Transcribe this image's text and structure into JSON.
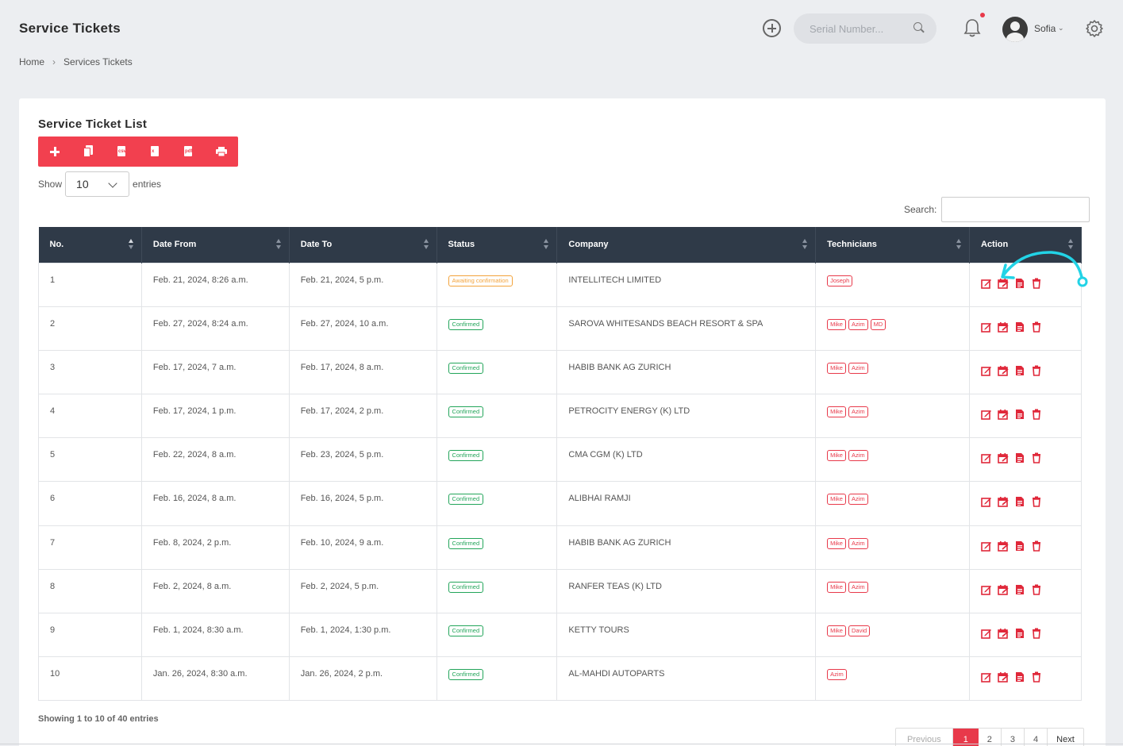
{
  "header": {
    "title": "Service Tickets",
    "serial_placeholder": "Serial Number...",
    "username": "Sofia"
  },
  "breadcrumb": [
    "Home",
    "Services Tickets"
  ],
  "card": {
    "title": "Service Ticket List",
    "show_label": "Show",
    "entries_value": "10",
    "entries_label": "entries",
    "search_label": "Search:"
  },
  "toolbar": [
    "plus-icon",
    "copy-icon",
    "csv-icon",
    "excel-icon",
    "pdf-icon",
    "print-icon"
  ],
  "table": {
    "columns": [
      "No.",
      "Date From",
      "Date To",
      "Status",
      "Company",
      "Technicians",
      "Action"
    ],
    "rows": [
      {
        "no": "1",
        "from": "Feb. 21, 2024, 8:26 a.m.",
        "to": "Feb. 21, 2024, 5 p.m.",
        "status": "Awaiting confirmation",
        "company": "INTELLITECH LIMITED",
        "techs": [
          "Joseph"
        ]
      },
      {
        "no": "2",
        "from": "Feb. 27, 2024, 8:24 a.m.",
        "to": "Feb. 27, 2024, 10 a.m.",
        "status": "Confirmed",
        "company": "SAROVA WHITESANDS BEACH RESORT & SPA",
        "techs": [
          "Mike",
          "Azim",
          "MD"
        ]
      },
      {
        "no": "3",
        "from": "Feb. 17, 2024, 7 a.m.",
        "to": "Feb. 17, 2024, 8 a.m.",
        "status": "Confirmed",
        "company": "HABIB BANK AG ZURICH",
        "techs": [
          "Mike",
          "Azim"
        ]
      },
      {
        "no": "4",
        "from": "Feb. 17, 2024, 1 p.m.",
        "to": "Feb. 17, 2024, 2 p.m.",
        "status": "Confirmed",
        "company": "PETROCITY ENERGY (K) LTD",
        "techs": [
          "Mike",
          "Azim"
        ]
      },
      {
        "no": "5",
        "from": "Feb. 22, 2024, 8 a.m.",
        "to": "Feb. 23, 2024, 5 p.m.",
        "status": "Confirmed",
        "company": "CMA CGM (K) LTD",
        "techs": [
          "Mike",
          "Azim"
        ]
      },
      {
        "no": "6",
        "from": "Feb. 16, 2024, 8 a.m.",
        "to": "Feb. 16, 2024, 5 p.m.",
        "status": "Confirmed",
        "company": "ALIBHAI RAMJI",
        "techs": [
          "Mike",
          "Azim"
        ]
      },
      {
        "no": "7",
        "from": "Feb. 8, 2024, 2 p.m.",
        "to": "Feb. 10, 2024, 9 a.m.",
        "status": "Confirmed",
        "company": "HABIB BANK AG ZURICH",
        "techs": [
          "Mike",
          "Azim"
        ]
      },
      {
        "no": "8",
        "from": "Feb. 2, 2024, 8 a.m.",
        "to": "Feb. 2, 2024, 5 p.m.",
        "status": "Confirmed",
        "company": "RANFER TEAS (K) LTD",
        "techs": [
          "Mike",
          "Azim"
        ]
      },
      {
        "no": "9",
        "from": "Feb. 1, 2024, 8:30 a.m.",
        "to": "Feb. 1, 2024, 1:30 p.m.",
        "status": "Confirmed",
        "company": "KETTY TOURS",
        "techs": [
          "Mike",
          "David"
        ]
      },
      {
        "no": "10",
        "from": "Jan. 26, 2024, 8:30 a.m.",
        "to": "Jan. 26, 2024, 2 p.m.",
        "status": "Confirmed",
        "company": "AL-MAHDI AUTOPARTS",
        "techs": [
          "Azim"
        ]
      }
    ]
  },
  "footer": {
    "showing": "Showing 1 to 10 of 40 entries",
    "pages": [
      "Previous",
      "1",
      "2",
      "3",
      "4",
      "Next"
    ],
    "active_page": "1"
  },
  "colors": {
    "accent": "#f2404f",
    "header_bg": "#2f3a48",
    "confirmed": "#23a55a",
    "awaiting": "#f3a33b",
    "annotation": "#22d3e6"
  }
}
